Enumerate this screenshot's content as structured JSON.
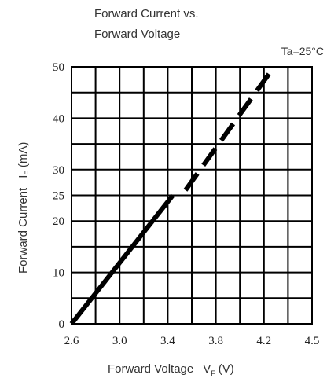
{
  "chart_data": {
    "type": "line",
    "title_line1": "Forward Current vs.",
    "title_line2": "Forward Voltage",
    "condition": "Ta=25°C",
    "xlabel": "Forward Voltage",
    "xlabel_symbol": "V",
    "xlabel_sub": "F",
    "xlabel_unit": "(V)",
    "ylabel": "Forward Current",
    "ylabel_symbol": "I",
    "ylabel_sub": "F",
    "ylabel_unit": "(mA)",
    "xlim": [
      2.6,
      4.5
    ],
    "ylim": [
      0,
      50
    ],
    "x_tick_labels": [
      "2.6",
      "3.0",
      "3.4",
      "3.8",
      "4.2",
      "4.5"
    ],
    "y_tick_labels": [
      "0",
      "10",
      "20",
      "25",
      "30",
      "40",
      "50"
    ],
    "grid": true,
    "series": [
      {
        "style": "solid",
        "x": [
          2.6,
          3.4
        ],
        "y": [
          0,
          25
        ],
        "color": "#000000"
      },
      {
        "style": "dashed",
        "x": [
          3.5,
          4.2
        ],
        "y": [
          26,
          50
        ],
        "color": "#000000"
      }
    ]
  }
}
